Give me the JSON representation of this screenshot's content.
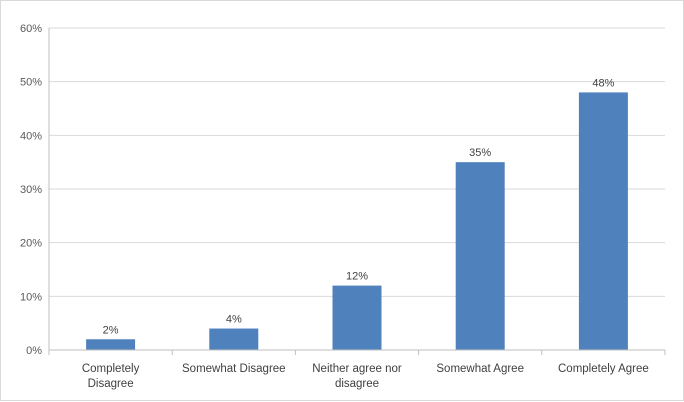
{
  "chart_data": {
    "type": "bar",
    "categories": [
      [
        "Completely",
        "Disagree"
      ],
      [
        "Somewhat Disagree"
      ],
      [
        "Neither agree nor",
        "disagree"
      ],
      [
        "Somewhat Agree"
      ],
      [
        "Completely Agree"
      ]
    ],
    "values": [
      2,
      4,
      12,
      35,
      48
    ],
    "data_labels": [
      "2%",
      "4%",
      "12%",
      "35%",
      "48%"
    ],
    "y_ticks": [
      "0%",
      "10%",
      "20%",
      "30%",
      "40%",
      "50%",
      "60%"
    ],
    "ylim": [
      0,
      60
    ],
    "grid": true,
    "legend": "none",
    "bar_color": "#4f81bd",
    "gridline_color": "#d9d9d9"
  }
}
